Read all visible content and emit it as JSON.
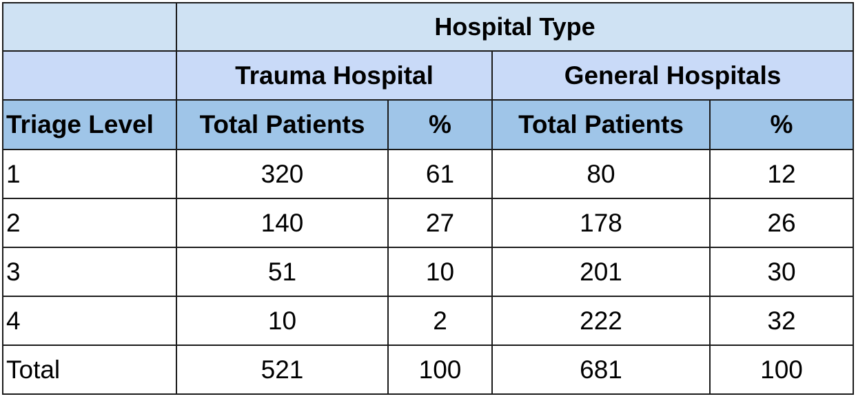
{
  "chart_data": {
    "type": "table",
    "header": {
      "super": "Hospital Type",
      "groups": [
        "Trauma Hospital",
        "General Hospitals"
      ],
      "columns": [
        "Triage Level",
        "Total Patients",
        "%",
        "Total Patients",
        "%"
      ]
    },
    "rows": [
      [
        "1",
        "320",
        "61",
        "80",
        "12"
      ],
      [
        "2",
        "140",
        "27",
        "178",
        "26"
      ],
      [
        "3",
        "51",
        "10",
        "201",
        "30"
      ],
      [
        "4",
        "10",
        "2",
        "222",
        "32"
      ],
      [
        "Total",
        "521",
        "100",
        "681",
        "100"
      ]
    ],
    "colors": {
      "header_top": "#cfe2f3",
      "header_group": "#c9daf8",
      "header_columns": "#9fc5e8"
    }
  }
}
